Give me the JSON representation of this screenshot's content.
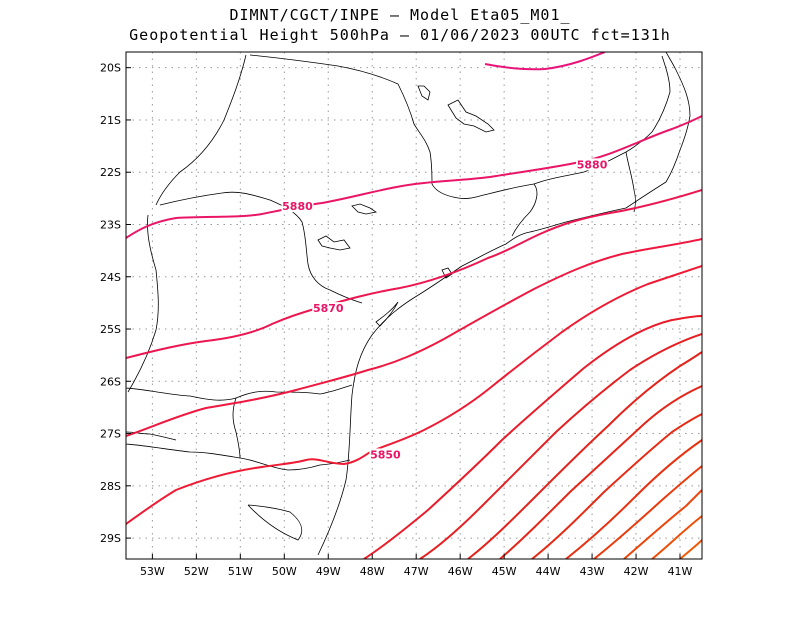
{
  "header": {
    "line1": "DIMNT/CGCT/INPE –  Model Eta05_M01_",
    "line2": "Geopotential Height 500hPa –  01/06/2023 00UTC fct=131h"
  },
  "map": {
    "lon_range": [
      -53.6,
      -40.5
    ],
    "lat_range": [
      -29.4,
      -19.7
    ],
    "lat_ticks": [
      {
        "value": -20,
        "label": "20S"
      },
      {
        "value": -21,
        "label": "21S"
      },
      {
        "value": -22,
        "label": "22S"
      },
      {
        "value": -23,
        "label": "23S"
      },
      {
        "value": -24,
        "label": "24S"
      },
      {
        "value": -25,
        "label": "25S"
      },
      {
        "value": -26,
        "label": "26S"
      },
      {
        "value": -27,
        "label": "27S"
      },
      {
        "value": -28,
        "label": "28S"
      },
      {
        "value": -29,
        "label": "29S"
      }
    ],
    "lon_ticks": [
      {
        "value": -53,
        "label": "53W"
      },
      {
        "value": -52,
        "label": "52W"
      },
      {
        "value": -51,
        "label": "51W"
      },
      {
        "value": -50,
        "label": "50W"
      },
      {
        "value": -49,
        "label": "49W"
      },
      {
        "value": -48,
        "label": "48W"
      },
      {
        "value": -47,
        "label": "47W"
      },
      {
        "value": -46,
        "label": "46W"
      },
      {
        "value": -45,
        "label": "45W"
      },
      {
        "value": -44,
        "label": "44W"
      },
      {
        "value": -43,
        "label": "43W"
      },
      {
        "value": -42,
        "label": "42W"
      },
      {
        "value": -41,
        "label": "41W"
      }
    ],
    "grid": "dotted",
    "contour_labels": [
      {
        "text": "5880",
        "lon": -49.7,
        "lat": -22.65
      },
      {
        "text": "5880",
        "lon": -43.0,
        "lat": -21.85
      },
      {
        "text": "5870",
        "lon": -49.0,
        "lat": -24.6
      },
      {
        "text": "5850",
        "lon": -47.7,
        "lat": -27.4
      }
    ],
    "colors": {
      "c5890": "#e8147a",
      "c5880": "#ea1566",
      "c5870": "#ec1650",
      "c5860": "#ee1840",
      "c5850": "#ef1a33",
      "c5840": "#e91c2a",
      "c5830": "#e61f22",
      "c5820": "#e4221a",
      "c5810": "#e42518",
      "c5800": "#e62a14",
      "c5790": "#e83010",
      "c5780": "#ea3a0c",
      "c5770": "#ec440a",
      "c5760": "#ee4e08",
      "c5750": "#f05806",
      "coast": "#000000"
    }
  }
}
